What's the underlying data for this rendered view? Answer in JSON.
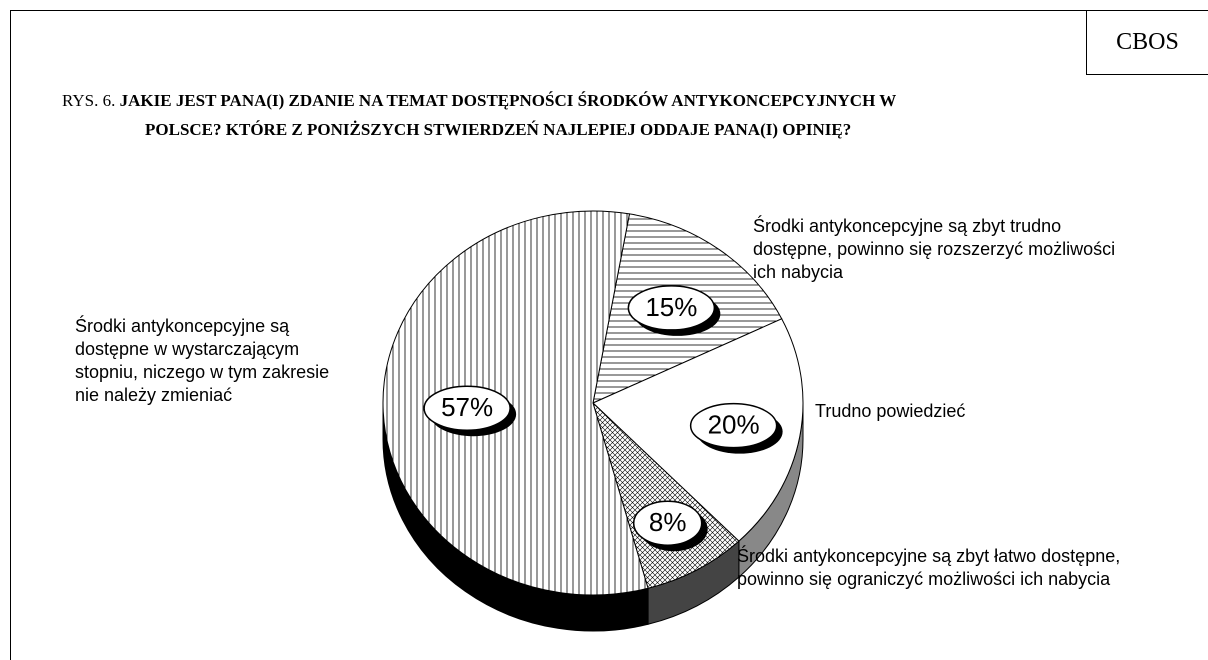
{
  "chart_data": {
    "type": "pie",
    "source": "CBOS",
    "figure_label": "RYS. 6.",
    "title": "JAKIE JEST PANA(I) ZDANIE NA TEMAT DOSTĘPNOŚCI ŚRODKÓW ANTYKONCEPCYJNYCH W POLSCE? KTÓRE Z PONIŻSZYCH STWIERDZEŃ NAJLEPIEJ ODDAJE PANA(I) OPINIĘ?",
    "categories": [
      "Środki antykoncepcyjne są zbyt trudno dostępne, powinno się rozszerzyć możliwości ich nabycia",
      "Trudno powiedzieć",
      "Środki antykoncepcyjne są zbyt łatwo dostępne, powinno się ograniczyć możliwości ich nabycia",
      "Środki antykoncepcyjne są dostępne w wystarczającym stopniu, niczego w tym zakresie nie należy zmieniać"
    ],
    "values": [
      15,
      20,
      8,
      57
    ],
    "value_labels": [
      "15%",
      "20%",
      "8%",
      "57%"
    ]
  }
}
